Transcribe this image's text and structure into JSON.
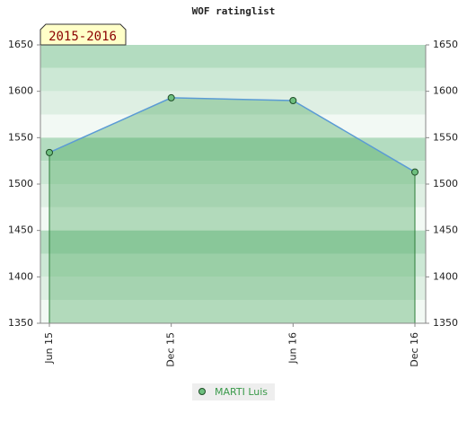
{
  "chart_data": {
    "type": "area",
    "title": "WOF ratinglist",
    "annotation": "2015-2016",
    "categories": [
      "Jun 15",
      "Dec 15",
      "Jun 16",
      "Dec 16"
    ],
    "series": [
      {
        "name": "MARTI Luis",
        "color": "#5b9bd5",
        "marker_color": "#6dbf7e",
        "values": [
          1534,
          1593,
          1590,
          1513
        ]
      }
    ],
    "ylim": [
      1350,
      1650
    ],
    "yticks": [
      1350,
      1400,
      1450,
      1500,
      1550,
      1600,
      1650
    ],
    "y2lim": [
      1350,
      1650
    ],
    "y2ticks": [
      1350,
      1400,
      1450,
      1500,
      1550,
      1600,
      1650
    ],
    "legend": "bottom"
  }
}
